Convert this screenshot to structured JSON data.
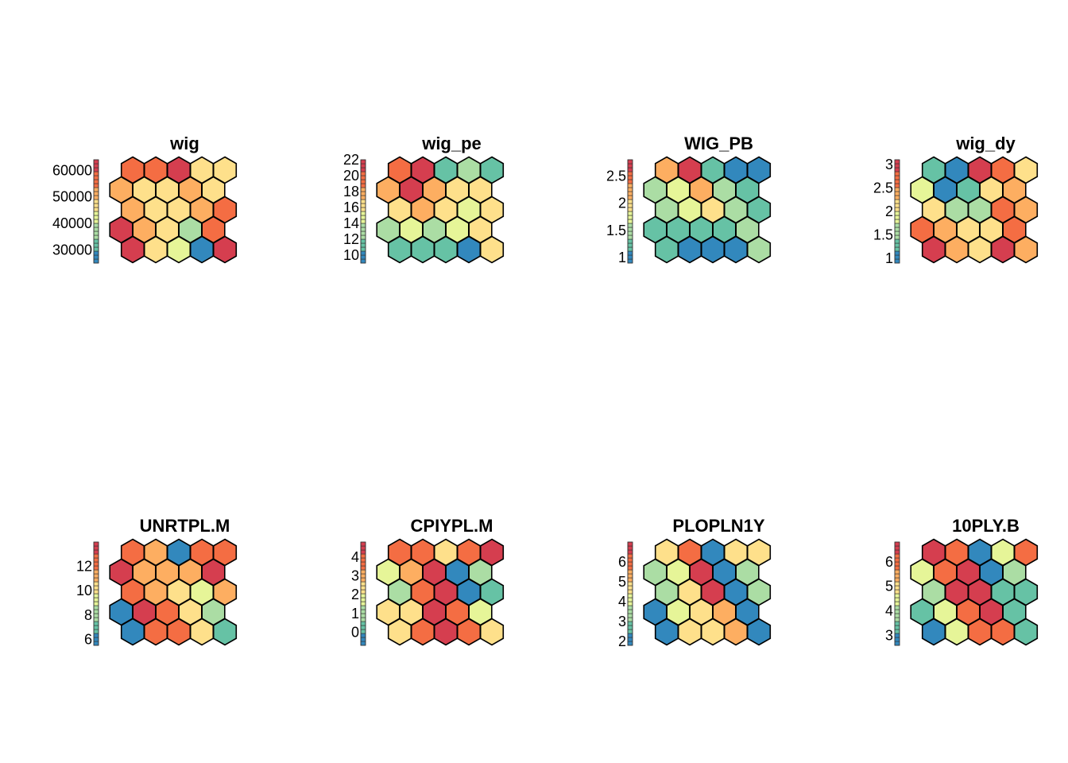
{
  "palette": [
    "#3288bd",
    "#66c2a5",
    "#abdda4",
    "#e6f598",
    "#fee08b",
    "#fdae61",
    "#f46d43",
    "#d53e4f"
  ],
  "stroke_color": "#000000",
  "chart_data": [
    {
      "type": "heatmap",
      "subtype": "hexagonal-som-property-map",
      "title": "wig",
      "grid": {
        "rows": 5,
        "cols": 5,
        "topology": "hexagonal"
      },
      "color_range": [
        25000,
        64000
      ],
      "ticks": [
        {
          "value": 30000,
          "label": "30000"
        },
        {
          "value": 40000,
          "label": "40000"
        },
        {
          "value": 50000,
          "label": "50000"
        },
        {
          "value": 60000,
          "label": "60000"
        }
      ],
      "values": [
        [
          59000,
          57000,
          62000,
          49000,
          46000
        ],
        [
          54000,
          48000,
          48000,
          54000,
          49000
        ],
        [
          53000,
          48000,
          48000,
          50000,
          55000
        ],
        [
          60000,
          51000,
          46000,
          37000,
          55000
        ],
        [
          62000,
          47000,
          44000,
          25000,
          64000
        ]
      ]
    },
    {
      "type": "heatmap",
      "subtype": "hexagonal-som-property-map",
      "title": "wig_pe",
      "grid": {
        "rows": 5,
        "cols": 5,
        "topology": "hexagonal"
      },
      "color_range": [
        9,
        22
      ],
      "ticks": [
        {
          "value": 10,
          "label": "10"
        },
        {
          "value": 12,
          "label": "12"
        },
        {
          "value": 14,
          "label": "14"
        },
        {
          "value": 16,
          "label": "16"
        },
        {
          "value": 18,
          "label": "18"
        },
        {
          "value": 20,
          "label": "20"
        },
        {
          "value": 22,
          "label": "22"
        }
      ],
      "values": [
        [
          20,
          22,
          12,
          13,
          12
        ],
        [
          18,
          21,
          18,
          16,
          17
        ],
        [
          17,
          18,
          16,
          15,
          16
        ],
        [
          13,
          14,
          13,
          14,
          16
        ],
        [
          12,
          12,
          12,
          9,
          16
        ]
      ]
    },
    {
      "type": "heatmap",
      "subtype": "hexagonal-som-property-map",
      "title": "WIG_PB",
      "grid": {
        "rows": 5,
        "cols": 5,
        "topology": "hexagonal"
      },
      "color_range": [
        0.9,
        2.8
      ],
      "ticks": [
        {
          "value": 1,
          "label": "1"
        },
        {
          "value": 1.5,
          "label": "1.5"
        },
        {
          "value": 2,
          "label": "2"
        },
        {
          "value": 2.5,
          "label": "2.5"
        }
      ],
      "values": [
        [
          2.1,
          2.8,
          1.2,
          0.95,
          0.95
        ],
        [
          1.55,
          1.75,
          2.2,
          1.5,
          1.3
        ],
        [
          1.5,
          1.65,
          1.95,
          1.45,
          1.35
        ],
        [
          1.35,
          1.25,
          1.3,
          1.35,
          1.6
        ],
        [
          1.3,
          0.95,
          0.95,
          0.95,
          1.6
        ]
      ]
    },
    {
      "type": "heatmap",
      "subtype": "hexagonal-som-property-map",
      "title": "wig_dy",
      "grid": {
        "rows": 5,
        "cols": 5,
        "topology": "hexagonal"
      },
      "color_range": [
        0.9,
        3.1
      ],
      "ticks": [
        {
          "value": 1,
          "label": "1"
        },
        {
          "value": 1.5,
          "label": "1.5"
        },
        {
          "value": 2,
          "label": "2"
        },
        {
          "value": 2.5,
          "label": "2.5"
        },
        {
          "value": 3,
          "label": "3"
        }
      ],
      "values": [
        [
          1.25,
          0.95,
          3.0,
          2.6,
          2.2
        ],
        [
          1.9,
          1.0,
          1.2,
          2.25,
          2.4
        ],
        [
          2.05,
          1.55,
          1.55,
          2.6,
          2.3
        ],
        [
          2.7,
          2.5,
          2.05,
          2.2,
          2.8
        ],
        [
          2.9,
          2.5,
          2.2,
          3.05,
          2.35
        ]
      ]
    },
    {
      "type": "heatmap",
      "subtype": "hexagonal-som-property-map",
      "title": "UNRTPL.M",
      "grid": {
        "rows": 5,
        "cols": 5,
        "topology": "hexagonal"
      },
      "color_range": [
        5.5,
        14
      ],
      "ticks": [
        {
          "value": 6,
          "label": "6"
        },
        {
          "value": 8,
          "label": "8"
        },
        {
          "value": 10,
          "label": "10"
        },
        {
          "value": 12,
          "label": "12"
        }
      ],
      "values": [
        [
          12.8,
          11.8,
          6.0,
          12.8,
          12.5
        ],
        [
          13.0,
          11.8,
          11.0,
          11.3,
          13.8
        ],
        [
          12.3,
          11.5,
          10.5,
          9.5,
          11.5
        ],
        [
          6.3,
          13.5,
          12.8,
          10.3,
          8.5
        ],
        [
          6.0,
          12.5,
          12.5,
          10.3,
          7.5
        ]
      ]
    },
    {
      "type": "heatmap",
      "subtype": "hexagonal-som-property-map",
      "title": "CPIYPL.M",
      "grid": {
        "rows": 5,
        "cols": 5,
        "topology": "hexagonal"
      },
      "color_range": [
        -0.7,
        4.8
      ],
      "ticks": [
        {
          "value": 0,
          "label": "0"
        },
        {
          "value": 1,
          "label": "1"
        },
        {
          "value": 2,
          "label": "2"
        },
        {
          "value": 3,
          "label": "3"
        },
        {
          "value": 4,
          "label": "4"
        }
      ],
      "values": [
        [
          4.0,
          3.8,
          2.4,
          3.8,
          4.6
        ],
        [
          1.8,
          3.0,
          4.2,
          -0.5,
          1.3
        ],
        [
          1.0,
          4.0,
          4.5,
          -0.3,
          0.6
        ],
        [
          2.3,
          2.3,
          4.3,
          4.0,
          1.8
        ],
        [
          2.4,
          3.6,
          4.5,
          3.5,
          2.4
        ]
      ]
    },
    {
      "type": "heatmap",
      "subtype": "hexagonal-som-property-map",
      "title": "PLOPLN1Y",
      "grid": {
        "rows": 5,
        "cols": 5,
        "topology": "hexagonal"
      },
      "color_range": [
        1.8,
        7.0
      ],
      "ticks": [
        {
          "value": 2,
          "label": "2"
        },
        {
          "value": 3,
          "label": "3"
        },
        {
          "value": 4,
          "label": "4"
        },
        {
          "value": 5,
          "label": "5"
        },
        {
          "value": 6,
          "label": "6"
        }
      ],
      "values": [
        [
          4.8,
          6.2,
          2.0,
          4.8,
          4.8
        ],
        [
          3.3,
          4.2,
          6.9,
          2.0,
          3.6
        ],
        [
          3.5,
          4.6,
          6.9,
          2.0,
          3.3
        ],
        [
          2.0,
          4.2,
          4.8,
          5.2,
          2.1
        ],
        [
          2.0,
          4.8,
          4.8,
          5.2,
          2.0
        ]
      ]
    },
    {
      "type": "heatmap",
      "subtype": "hexagonal-som-property-map",
      "title": "10PLY.B",
      "grid": {
        "rows": 5,
        "cols": 5,
        "topology": "hexagonal"
      },
      "color_range": [
        2.6,
        6.8
      ],
      "ticks": [
        {
          "value": 3,
          "label": "3"
        },
        {
          "value": 4,
          "label": "4"
        },
        {
          "value": 5,
          "label": "5"
        },
        {
          "value": 6,
          "label": "6"
        }
      ],
      "values": [
        [
          6.6,
          6.2,
          2.8,
          4.6,
          6.2
        ],
        [
          4.3,
          6.2,
          6.5,
          2.8,
          4.0
        ],
        [
          3.8,
          6.5,
          6.6,
          3.2,
          3.4
        ],
        [
          3.4,
          4.2,
          6.2,
          6.6,
          3.6
        ],
        [
          2.8,
          4.6,
          6.2,
          6.2,
          3.6
        ]
      ]
    }
  ]
}
